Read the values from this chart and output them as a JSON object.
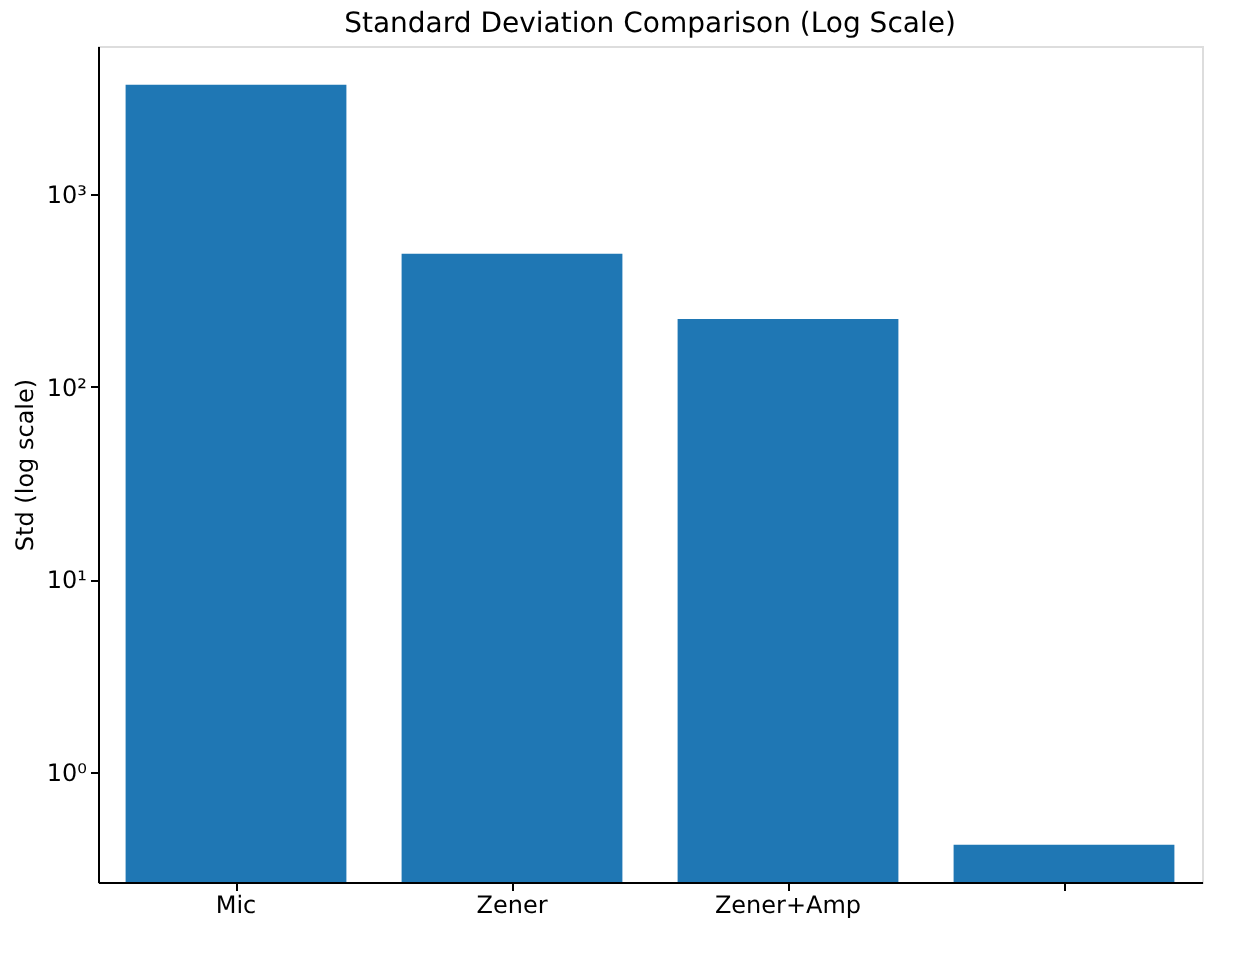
{
  "chart_data": {
    "type": "bar",
    "title": "Standard Deviation Comparison (Log Scale)",
    "ylabel": "Std (log scale)",
    "categories": [
      "Mic",
      "Zener",
      "Zener+Amp",
      null
    ],
    "values": [
      3710,
      492,
      225,
      0.419
    ],
    "color": "#1f77b4",
    "log": "y",
    "ylim": [
      0.268,
      5900
    ],
    "yticks": [
      {
        "value": 1,
        "label": "10⁰"
      },
      {
        "value": 10,
        "label": "10¹"
      },
      {
        "value": 100,
        "label": "10²"
      },
      {
        "value": 1000,
        "label": "10³"
      }
    ],
    "grid": false
  }
}
